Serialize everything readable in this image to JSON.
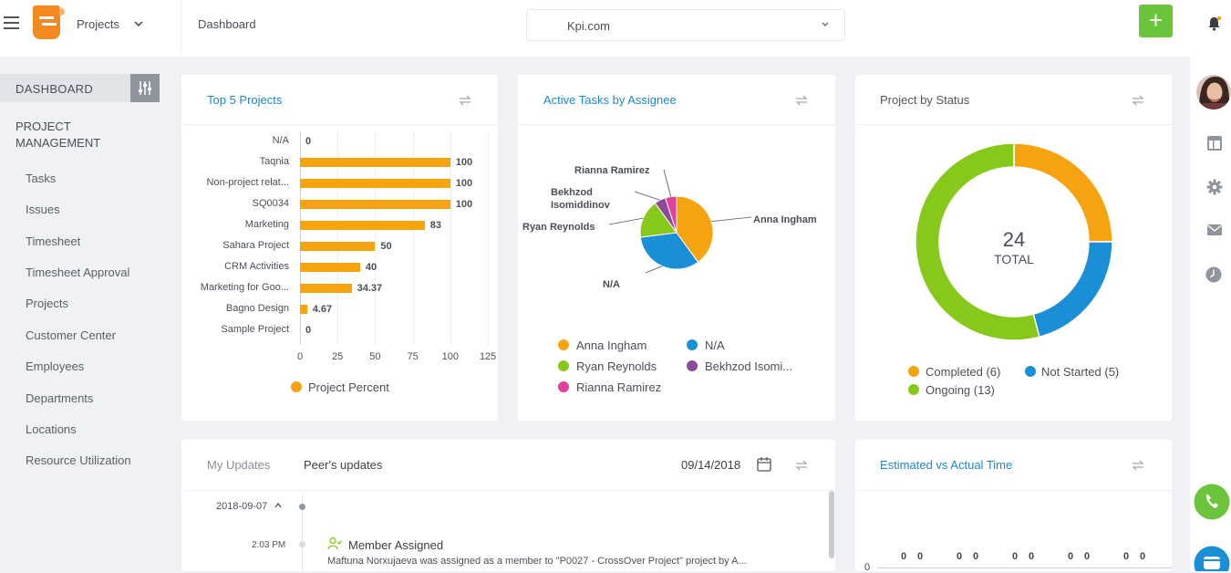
{
  "topbar": {
    "project_selector": "Projects",
    "breadcrumb": "Dashboard",
    "workspace": "Kpi.com",
    "add_label": "+"
  },
  "sidebar": {
    "dashboard": "DASHBOARD",
    "section": [
      "PROJECT",
      "MANAGEMENT"
    ],
    "items": [
      "Tasks",
      "Issues",
      "Timesheet",
      "Timesheet Approval",
      "Projects",
      "Customer Center",
      "Employees",
      "Departments",
      "Locations",
      "Resource Utilization"
    ]
  },
  "cards": {
    "top5": {
      "title": "Top 5 Projects"
    },
    "assignee": {
      "title": "Active Tasks by Assignee"
    },
    "status": {
      "title": "Project by Status",
      "total_number": "24",
      "total_label": "TOTAL"
    },
    "updates": {
      "tab_mine": "My Updates",
      "tab_peer": "Peer's updates",
      "date": "09/14/2018"
    },
    "estimated": {
      "title": "Estimated vs Actual Time"
    }
  },
  "feed": {
    "date": "2018-09-07",
    "time": "2:03 PM",
    "event": "Member Assigned",
    "detail": "Maftuna Norxujaeva was assigned as a member to \"P0027 - CrossOver Project\" project by A..."
  },
  "colors": {
    "accent": "#1f86c9",
    "orange": "#f5a30f",
    "blue": "#1a8fd6",
    "green": "#86c91a",
    "purple": "#8b4a9c",
    "pink": "#e0419a",
    "add_green": "#6cc43b"
  },
  "chart_data": [
    {
      "type": "bar",
      "orientation": "horizontal",
      "title": "Top 5 Projects",
      "categories": [
        "N/A",
        "Taqnia",
        "Non-project relat...",
        "SQ0034",
        "Marketing",
        "Sahara Project",
        "CRM Activities",
        "Marketing for Goo...",
        "Bagno Design",
        "Sample Project"
      ],
      "values": [
        0,
        100,
        100,
        100,
        83,
        50,
        40,
        34.37,
        4.67,
        0
      ],
      "value_labels": [
        "0",
        "100",
        "100",
        "100",
        "83",
        "50",
        "40",
        "34.37",
        "4.67",
        "0"
      ],
      "x_ticks": [
        "0",
        "25",
        "50",
        "75",
        "100",
        "125"
      ],
      "xlim": [
        0,
        125
      ],
      "grid": true,
      "legend": [
        "Project Percent"
      ],
      "legend_placement": "bottom"
    },
    {
      "type": "pie",
      "title": "Active Tasks by Assignee",
      "labels": [
        "Anna Ingham",
        "N/A",
        "Ryan Reynolds",
        "Bekhzod Isomiddinov",
        "Rianna Ramirez"
      ],
      "values": [
        40,
        33,
        17,
        5,
        5
      ],
      "slice_labels": [
        "Anna Ingham",
        "N/A",
        "Ryan Reynolds",
        "Bekhzod Isomiddinov",
        "Rianna Ramirez"
      ],
      "legend": [
        "Anna Ingham",
        "N/A",
        "Ryan Reynolds",
        "Bekhzod Isomi...",
        "Rianna Ramirez"
      ],
      "legend_placement": "bottom"
    },
    {
      "type": "pie",
      "variant": "donut",
      "title": "Project by Status",
      "labels": [
        "Completed",
        "Not Started",
        "Ongoing"
      ],
      "values": [
        6,
        5,
        13
      ],
      "legend": [
        "Completed (6)",
        "Not Started (5)",
        "Ongoing (13)"
      ],
      "legend_placement": "bottom",
      "center_text": "24 TOTAL"
    }
  ]
}
